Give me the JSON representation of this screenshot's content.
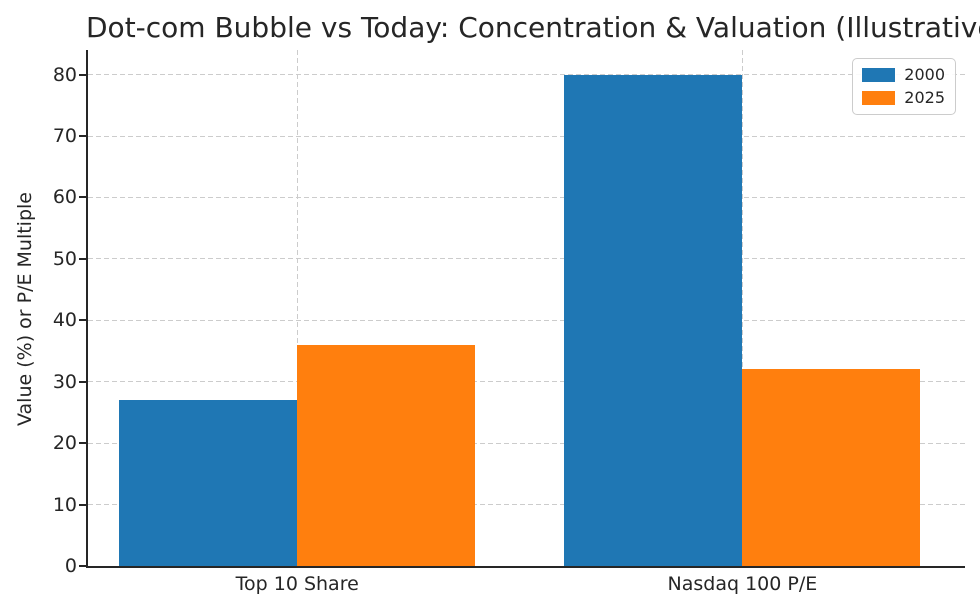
{
  "chart_data": {
    "type": "bar",
    "title": "Dot-com Bubble vs Today: Concentration & Valuation (Illustrative)",
    "ylabel": "Value (%) or P/E Multiple",
    "xlabel": "",
    "categories": [
      "Top 10 Share",
      "Nasdaq 100 P/E"
    ],
    "series": [
      {
        "name": "2000",
        "color": "#1f77b4",
        "values": [
          27,
          80
        ]
      },
      {
        "name": "2025",
        "color": "#ff7f0e",
        "values": [
          36,
          32
        ]
      }
    ],
    "ylim": [
      0,
      84
    ],
    "yticks": [
      0,
      10,
      20,
      30,
      40,
      50,
      60,
      70,
      80
    ],
    "xlim": [
      -0.47,
      1.5
    ],
    "bar_width": 0.4,
    "grid": true,
    "grid_style": "dashed",
    "legend_position": "upper right"
  }
}
